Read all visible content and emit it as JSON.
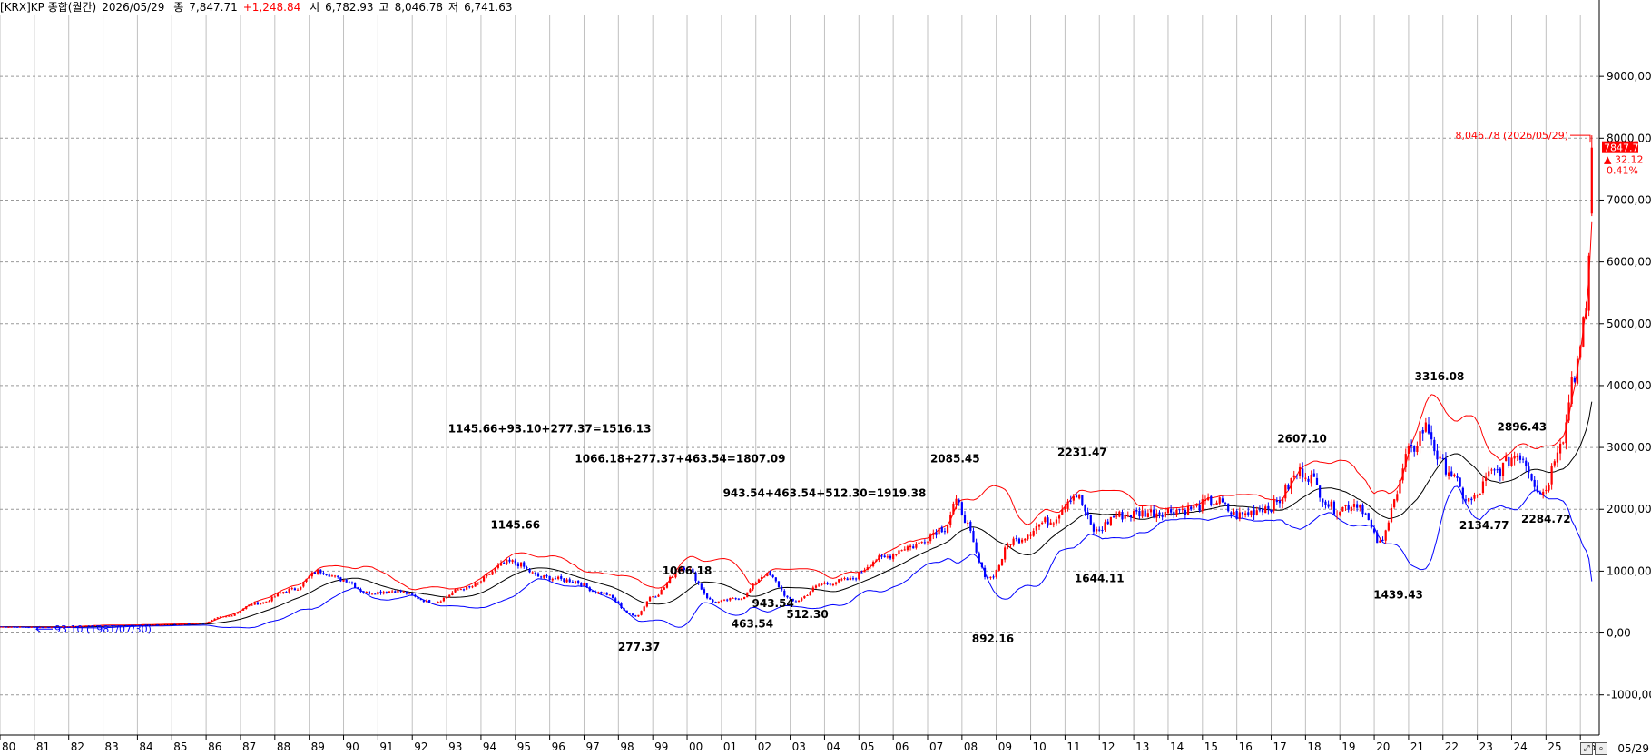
{
  "header": {
    "symbol": "[KRX]KP 종합(월간)",
    "date": "2026/05/29",
    "close_label": "종",
    "close_value": "7,847.71",
    "change": "+1,248.84",
    "open_label": "시",
    "open_value": "6,782.93",
    "high_label": "고",
    "high_value": "8,046.78",
    "low_label": "저",
    "low_value": "6,741.63"
  },
  "price_box": {
    "value": "7847.71",
    "change": "▲ 32.12",
    "pct": "0.41%"
  },
  "end_date": "05/29",
  "colors": {
    "up": "#ff0000",
    "down": "#0000ff",
    "ma": "#000000",
    "upper_band": "#ff0000",
    "lower_band": "#0000ff",
    "grid": "#c0c0c0"
  },
  "chart_data": {
    "type": "candlestick",
    "title": "[KRX]KP 종합(월간)",
    "x_ticks": [
      "80",
      "81",
      "82",
      "83",
      "84",
      "85",
      "86",
      "87",
      "88",
      "89",
      "90",
      "91",
      "92",
      "93",
      "94",
      "95",
      "96",
      "97",
      "98",
      "99",
      "00",
      "01",
      "02",
      "03",
      "04",
      "05",
      "06",
      "07",
      "08",
      "09",
      "10",
      "11",
      "12",
      "13",
      "14",
      "15",
      "16",
      "17",
      "18",
      "19",
      "20",
      "21",
      "22",
      "23",
      "24",
      "25",
      "26"
    ],
    "y_ticks": [
      -1000,
      0,
      1000,
      2000,
      3000,
      4000,
      5000,
      6000,
      7000,
      8000,
      9000
    ],
    "y_tick_labels": [
      "-1000,00",
      "0,00",
      "1000,00",
      "2000,00",
      "3000,00",
      "4000,00",
      "5000,00",
      "6000,00",
      "7000,00",
      "8000,00",
      "9000,00"
    ],
    "ylim": [
      -1650,
      10000
    ],
    "xlim": [
      1980.0,
      2026.55
    ],
    "series_anchors": [
      [
        1980.0,
        100
      ],
      [
        1981.5,
        93
      ],
      [
        1983,
        120
      ],
      [
        1985,
        140
      ],
      [
        1985.9,
        160
      ],
      [
        1986.5,
        260
      ],
      [
        1987.5,
        480
      ],
      [
        1988.5,
        700
      ],
      [
        1989.3,
        1000
      ],
      [
        1990,
        860
      ],
      [
        1990.7,
        650
      ],
      [
        1991.5,
        680
      ],
      [
        1992.6,
        500
      ],
      [
        1993.5,
        720
      ],
      [
        1994.9,
        1145.66
      ],
      [
        1995.8,
        900
      ],
      [
        1996.6,
        850
      ],
      [
        1997.5,
        650
      ],
      [
        1998.5,
        277.37
      ],
      [
        1999.0,
        600
      ],
      [
        1999.9,
        1066.18
      ],
      [
        2000.8,
        500
      ],
      [
        2001.5,
        560
      ],
      [
        2002.3,
        943.54
      ],
      [
        2003.1,
        512.3
      ],
      [
        2004.0,
        800
      ],
      [
        2004.7,
        860
      ],
      [
        2005.6,
        1200
      ],
      [
        2006.5,
        1400
      ],
      [
        2007.5,
        1700
      ],
      [
        2007.8,
        2085.45
      ],
      [
        2008.8,
        892.16
      ],
      [
        2009.5,
        1500
      ],
      [
        2010.5,
        1800
      ],
      [
        2011.3,
        2231.47
      ],
      [
        2011.9,
        1644.11
      ],
      [
        2012.5,
        1900
      ],
      [
        2013.5,
        1950
      ],
      [
        2014.5,
        2000
      ],
      [
        2015.4,
        2130
      ],
      [
        2016.0,
        1900
      ],
      [
        2017.0,
        2050
      ],
      [
        2017.9,
        2607.1
      ],
      [
        2018.9,
        2000
      ],
      [
        2019.5,
        2100
      ],
      [
        2020.2,
        1439.43
      ],
      [
        2020.6,
        2200
      ],
      [
        2021.0,
        2900
      ],
      [
        2021.5,
        3316.08
      ],
      [
        2022.0,
        2700
      ],
      [
        2022.8,
        2134.77
      ],
      [
        2023.5,
        2600
      ],
      [
        2024.2,
        2896.43
      ],
      [
        2024.9,
        2284.72
      ],
      [
        2025.5,
        3200
      ],
      [
        2025.8,
        4200
      ],
      [
        2026.0,
        4500
      ],
      [
        2026.15,
        5200
      ],
      [
        2026.25,
        6100
      ],
      [
        2026.35,
        7847.71
      ]
    ],
    "annotations": [
      {
        "text": "1145.66+93.10+277.37=1516.13",
        "x": 1996.0,
        "y": 3245
      },
      {
        "text": "1066.18+277.37+463.54=1807.09",
        "x": 1999.8,
        "y": 2760
      },
      {
        "text": "943.54+463.54+512.30=1919.38",
        "x": 2004.0,
        "y": 2200
      },
      {
        "text": "1145.66",
        "x": 1995.0,
        "y": 1690
      },
      {
        "text": "1066.18",
        "x": 2000.0,
        "y": 950
      },
      {
        "text": "943.54",
        "x": 2002.5,
        "y": 420
      },
      {
        "text": "277.37",
        "x": 1998.6,
        "y": -285
      },
      {
        "text": "463.54",
        "x": 2001.9,
        "y": 90
      },
      {
        "text": "512.30",
        "x": 2003.5,
        "y": 240
      },
      {
        "text": "2085.45",
        "x": 2007.8,
        "y": 2760
      },
      {
        "text": "892.16",
        "x": 2008.9,
        "y": -150
      },
      {
        "text": "2231.47",
        "x": 2011.5,
        "y": 2860
      },
      {
        "text": "1644.11",
        "x": 2012.0,
        "y": 820
      },
      {
        "text": "2607.10",
        "x": 2017.9,
        "y": 3080
      },
      {
        "text": "1439.43",
        "x": 2020.7,
        "y": 560
      },
      {
        "text": "3316.08",
        "x": 2021.9,
        "y": 4085
      },
      {
        "text": "2134.77",
        "x": 2023.2,
        "y": 1680
      },
      {
        "text": "2896.43",
        "x": 2024.3,
        "y": 3270
      },
      {
        "text": "2284.72",
        "x": 2025.0,
        "y": 1780
      }
    ],
    "high_marker": {
      "text": "8,046.78 (2026/05/29)",
      "value": 8046.78
    },
    "low_marker": {
      "text": "93.10 (1981/07/30)",
      "value": 93.1
    }
  }
}
